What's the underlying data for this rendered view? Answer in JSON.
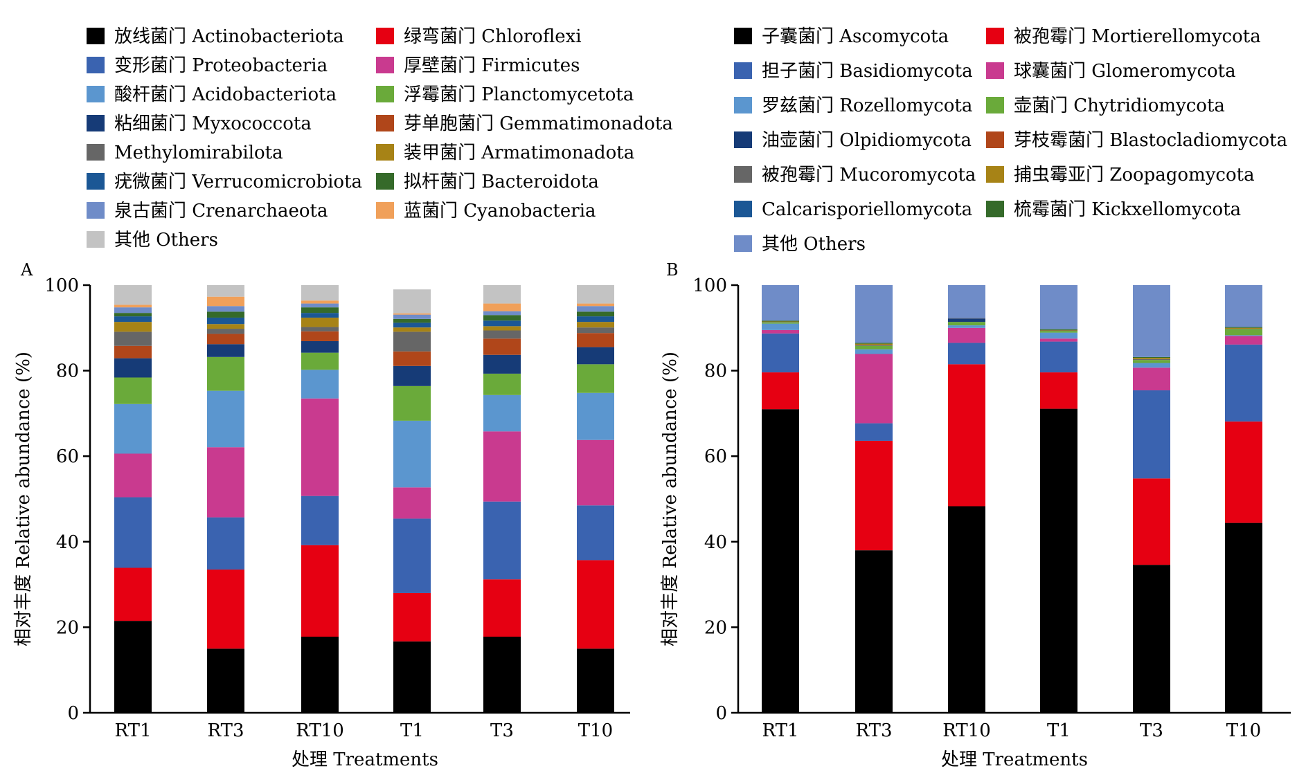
{
  "chart_data": [
    {
      "type": "bar",
      "stacked": true,
      "panel_label": "A",
      "xlabel": "处理 Treatments",
      "ylabel": "相对丰度 Relative abundance (%)",
      "ylim": [
        0,
        100
      ],
      "yticks": [
        "0",
        "20",
        "40",
        "60",
        "80",
        "100"
      ],
      "grid": false,
      "legend_position": "top",
      "categories": [
        "RT1",
        "RT3",
        "RT10",
        "T1",
        "T3",
        "T10"
      ],
      "series": [
        {
          "name": "放线菌门 Actinobacteriota",
          "color": "#000000",
          "values": [
            21.5,
            15.0,
            17.8,
            16.7,
            17.8,
            15.0
          ]
        },
        {
          "name": "绿弯菌门 Chloroflexi",
          "color": "#e60012",
          "values": [
            12.4,
            18.5,
            21.4,
            11.3,
            13.4,
            20.7
          ]
        },
        {
          "name": "变形菌门 Proteobacteria",
          "color": "#3a63b0",
          "values": [
            16.5,
            12.2,
            11.5,
            17.4,
            18.2,
            12.8
          ]
        },
        {
          "name": "厚壁菌门 Firmicutes",
          "color": "#c93a8f",
          "values": [
            10.2,
            16.4,
            22.8,
            7.3,
            16.4,
            15.3
          ]
        },
        {
          "name": "酸杆菌门 Acidobacteriota",
          "color": "#5b96cf",
          "values": [
            11.6,
            13.2,
            6.7,
            15.6,
            8.5,
            11.0
          ]
        },
        {
          "name": "浮霉菌门 Planctomycetota",
          "color": "#6aaa3a",
          "values": [
            6.2,
            7.9,
            4.0,
            8.1,
            5.0,
            6.7
          ]
        },
        {
          "name": "粘细菌门 Myxococcota",
          "color": "#163b77",
          "values": [
            4.5,
            3.0,
            2.7,
            4.7,
            4.4,
            4.0
          ]
        },
        {
          "name": "芽单胞菌门 Gemmatimonadota",
          "color": "#b0461a",
          "values": [
            2.9,
            2.4,
            2.3,
            3.4,
            3.8,
            3.3
          ]
        },
        {
          "name": "Methylomirabilota",
          "color": "#666666",
          "values": [
            3.3,
            1.2,
            1.0,
            4.6,
            1.9,
            1.3
          ]
        },
        {
          "name": "装甲菌门 Armatimonadota",
          "color": "#a78316",
          "values": [
            2.3,
            1.1,
            2.2,
            1.0,
            1.0,
            1.3
          ]
        },
        {
          "name": "疣微菌门 Verrucomicrobiota",
          "color": "#1b5795",
          "values": [
            1.3,
            1.5,
            1.1,
            1.1,
            1.3,
            1.3
          ]
        },
        {
          "name": "拟杆菌门 Bacteroidota",
          "color": "#356a2a",
          "values": [
            0.8,
            1.4,
            1.3,
            0.9,
            1.3,
            1.1
          ]
        },
        {
          "name": "泉古菌门 Crenarchaeota",
          "color": "#6f8cc8",
          "values": [
            1.3,
            1.3,
            0.9,
            1.0,
            0.9,
            1.3
          ]
        },
        {
          "name": "蓝菌门 Cyanobacteria",
          "color": "#f0a05a",
          "values": [
            0.6,
            2.2,
            0.7,
            0.3,
            1.8,
            0.6
          ]
        },
        {
          "name": "其他 Others",
          "color": "#c3c3c3",
          "values": [
            4.6,
            2.7,
            3.6,
            5.6,
            4.3,
            4.3
          ]
        }
      ]
    },
    {
      "type": "bar",
      "stacked": true,
      "panel_label": "B",
      "xlabel": "处理 Treatments",
      "ylabel": "相对丰度 Relative abundance (%)",
      "ylim": [
        0,
        100
      ],
      "yticks": [
        "0",
        "20",
        "40",
        "60",
        "80",
        "100"
      ],
      "grid": false,
      "legend_position": "top",
      "categories": [
        "RT1",
        "RT3",
        "RT10",
        "T1",
        "T3",
        "T10"
      ],
      "series": [
        {
          "name": "子囊菌门 Ascomycota",
          "color": "#000000",
          "values": [
            71.0,
            38.0,
            48.3,
            71.1,
            34.6,
            44.4
          ]
        },
        {
          "name": "被孢霉门 Mortierellomycota",
          "color": "#e60012",
          "values": [
            8.6,
            25.6,
            33.2,
            8.5,
            20.2,
            23.7
          ]
        },
        {
          "name": "担子菌门 Basidiomycota",
          "color": "#3a63b0",
          "values": [
            9.1,
            4.1,
            5.0,
            7.2,
            20.6,
            18.0
          ]
        },
        {
          "name": "球囊菌门 Glomeromycota",
          "color": "#c93a8f",
          "values": [
            0.8,
            16.2,
            3.5,
            0.7,
            5.3,
            2.0
          ]
        },
        {
          "name": "罗兹菌门 Rozellomycota",
          "color": "#5b96cf",
          "values": [
            1.5,
            1.1,
            0.6,
            1.4,
            1.1,
            0.2
          ]
        },
        {
          "name": "壶菌门 Chytridiomycota",
          "color": "#6aaa3a",
          "values": [
            0.3,
            0.8,
            0.8,
            0.4,
            0.7,
            1.4
          ]
        },
        {
          "name": "油壶菌门 Olpidiomycota",
          "color": "#163b77",
          "values": [
            0.0,
            0.0,
            0.8,
            0.0,
            0.0,
            0.0
          ]
        },
        {
          "name": "芽枝霉菌门 Blastocladiomycota",
          "color": "#b0461a",
          "values": [
            0.0,
            0.0,
            0.0,
            0.0,
            0.0,
            0.0
          ]
        },
        {
          "name": "被孢霉门 Mucoromycota",
          "color": "#666666",
          "values": [
            0.1,
            0.2,
            0.1,
            0.1,
            0.2,
            0.1
          ]
        },
        {
          "name": "捕虫霉亚门 Zoopagomycota",
          "color": "#a78316",
          "values": [
            0.1,
            0.3,
            0.0,
            0.1,
            0.3,
            0.2
          ]
        },
        {
          "name": "Calcarisporiellomycota",
          "color": "#1b5795",
          "values": [
            0.0,
            0.0,
            0.0,
            0.0,
            0.0,
            0.0
          ]
        },
        {
          "name": "梳霉菌门 Kickxellomycota",
          "color": "#356a2a",
          "values": [
            0.2,
            0.2,
            0.0,
            0.2,
            0.2,
            0.2
          ]
        },
        {
          "name": "其他 Others",
          "color": "#6f8cc8",
          "values": [
            8.3,
            13.5,
            7.7,
            10.3,
            16.8,
            9.8
          ]
        }
      ]
    }
  ]
}
